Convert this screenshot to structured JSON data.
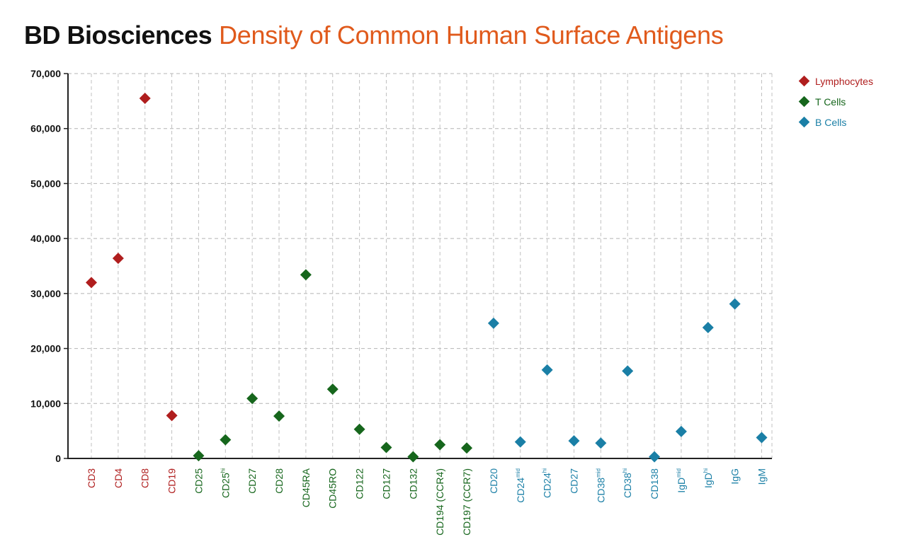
{
  "title": {
    "brand": "BD Biosciences",
    "subtitle": "Density of Common Human Surface Antigens"
  },
  "colors": {
    "lymphocytes": "#b01e1e",
    "t_cells": "#16661c",
    "b_cells": "#1a7fa6",
    "subtitle": "#e05a1c"
  },
  "chart_data": {
    "type": "scatter",
    "title": "Density of Common Human Surface Antigens",
    "ylim": [
      0,
      70000
    ],
    "yticks": [
      0,
      10000,
      20000,
      30000,
      40000,
      50000,
      60000,
      70000
    ],
    "ytick_labels": [
      "0",
      "10,000",
      "20,000",
      "30,000",
      "40,000",
      "50,000",
      "60,000",
      "70,000"
    ],
    "grid": true,
    "legend_position": "top-right",
    "categories": [
      {
        "label": "CD3",
        "sup": "",
        "group": "lymphocytes"
      },
      {
        "label": "CD4",
        "sup": "",
        "group": "lymphocytes"
      },
      {
        "label": "CD8",
        "sup": "",
        "group": "lymphocytes"
      },
      {
        "label": "CD19",
        "sup": "",
        "group": "lymphocytes"
      },
      {
        "label": "CD25",
        "sup": "",
        "group": "t_cells"
      },
      {
        "label": "CD25",
        "sup": "hi",
        "group": "t_cells"
      },
      {
        "label": "CD27",
        "sup": "",
        "group": "t_cells"
      },
      {
        "label": "CD28",
        "sup": "",
        "group": "t_cells"
      },
      {
        "label": "CD45RA",
        "sup": "",
        "group": "t_cells"
      },
      {
        "label": "CD45RO",
        "sup": "",
        "group": "t_cells"
      },
      {
        "label": "CD122",
        "sup": "",
        "group": "t_cells"
      },
      {
        "label": "CD127",
        "sup": "",
        "group": "t_cells"
      },
      {
        "label": "CD132",
        "sup": "",
        "group": "t_cells"
      },
      {
        "label": "CD194 (CCR4)",
        "sup": "",
        "group": "t_cells"
      },
      {
        "label": "CD197 (CCR7)",
        "sup": "",
        "group": "t_cells"
      },
      {
        "label": "CD20",
        "sup": "",
        "group": "b_cells"
      },
      {
        "label": "CD24",
        "sup": "mid",
        "group": "b_cells"
      },
      {
        "label": "CD24",
        "sup": "hi",
        "group": "b_cells"
      },
      {
        "label": "CD27",
        "sup": "",
        "group": "b_cells"
      },
      {
        "label": "CD38",
        "sup": "mid",
        "group": "b_cells"
      },
      {
        "label": "CD38",
        "sup": "hi",
        "group": "b_cells"
      },
      {
        "label": "CD138",
        "sup": "",
        "group": "b_cells"
      },
      {
        "label": "IgD",
        "sup": "mid",
        "group": "b_cells"
      },
      {
        "label": "IgD",
        "sup": "hi",
        "group": "b_cells"
      },
      {
        "label": "IgG",
        "sup": "",
        "group": "b_cells"
      },
      {
        "label": "IgM",
        "sup": "",
        "group": "b_cells"
      }
    ],
    "series": [
      {
        "name": "Lymphocytes",
        "key": "lymphocytes",
        "points": [
          {
            "x": "CD3",
            "y": 32000
          },
          {
            "x": "CD4",
            "y": 36400
          },
          {
            "x": "CD8",
            "y": 65500
          },
          {
            "x": "CD19",
            "y": 7800
          }
        ]
      },
      {
        "name": "T Cells",
        "key": "t_cells",
        "points": [
          {
            "x": "CD25",
            "y": 500
          },
          {
            "x": "CD25hi",
            "y": 3400
          },
          {
            "x": "CD27",
            "y": 10900
          },
          {
            "x": "CD28",
            "y": 7700
          },
          {
            "x": "CD45RA",
            "y": 33400
          },
          {
            "x": "CD45RO",
            "y": 12600
          },
          {
            "x": "CD122",
            "y": 5300
          },
          {
            "x": "CD127",
            "y": 2000
          },
          {
            "x": "CD132",
            "y": 300
          },
          {
            "x": "CD194 (CCR4)",
            "y": 2500
          },
          {
            "x": "CD197 (CCR7)",
            "y": 1900
          }
        ]
      },
      {
        "name": "B Cells",
        "key": "b_cells",
        "points": [
          {
            "x": "CD20",
            "y": 24600
          },
          {
            "x": "CD24mid",
            "y": 3000
          },
          {
            "x": "CD24hi",
            "y": 16100
          },
          {
            "x": "CD27",
            "y": 3200
          },
          {
            "x": "CD38mid",
            "y": 2800
          },
          {
            "x": "CD38hi",
            "y": 15900
          },
          {
            "x": "CD138",
            "y": 300
          },
          {
            "x": "IgDmid",
            "y": 4900
          },
          {
            "x": "IgDhi",
            "y": 23800
          },
          {
            "x": "IgG",
            "y": 28100
          },
          {
            "x": "IgM",
            "y": 3800
          }
        ]
      }
    ]
  }
}
